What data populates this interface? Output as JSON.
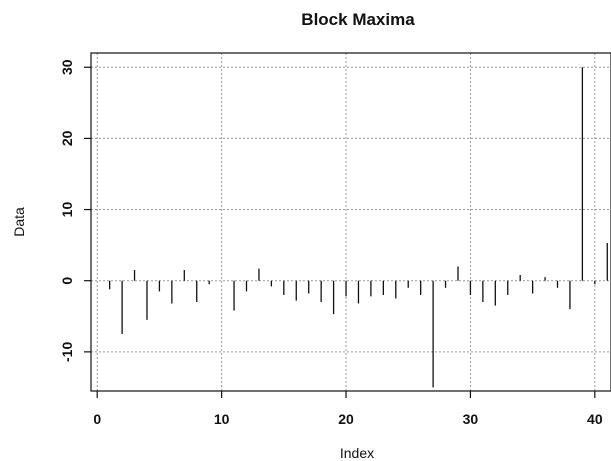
{
  "chart_data": {
    "type": "bar",
    "title": "Block Maxima",
    "xlabel": "Index",
    "ylabel": "Data",
    "xlim": [
      -0.5,
      41.3
    ],
    "ylim": [
      -15.5,
      32
    ],
    "xticks": [
      0,
      10,
      20,
      30,
      40
    ],
    "yticks": [
      -10,
      0,
      10,
      20,
      30
    ],
    "grid": true,
    "x": [
      1,
      2,
      3,
      4,
      5,
      6,
      7,
      8,
      9,
      10,
      11,
      12,
      13,
      14,
      15,
      16,
      17,
      18,
      19,
      20,
      21,
      22,
      23,
      24,
      25,
      26,
      27,
      28,
      29,
      30,
      31,
      32,
      33,
      34,
      35,
      36,
      37,
      38,
      39,
      40,
      41
    ],
    "values": [
      -1.2,
      -7.5,
      1.5,
      -5.5,
      -1.5,
      -3.2,
      1.5,
      -3.0,
      -0.5,
      0.0,
      -4.2,
      -1.5,
      1.7,
      -0.8,
      -2.0,
      -2.8,
      -1.8,
      -3.0,
      -4.7,
      -2.2,
      -3.2,
      -2.2,
      -2.0,
      -2.5,
      -1.0,
      -2.0,
      -15.0,
      -1.0,
      2.0,
      -2.0,
      -3.0,
      -3.5,
      -2.0,
      0.8,
      -1.8,
      0.5,
      -1.0,
      -4.0,
      30.0,
      -0.5,
      5.3
    ]
  }
}
